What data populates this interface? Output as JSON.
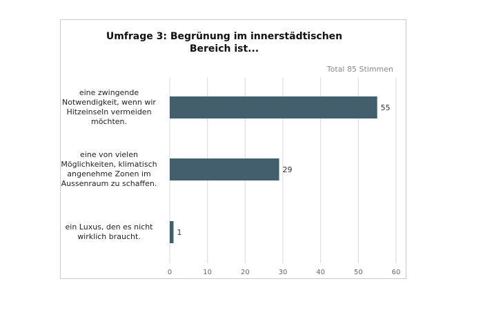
{
  "chart_data": {
    "type": "bar",
    "orientation": "horizontal",
    "title_line1": "Umfrage 3: Begrünung im innerstädtischen",
    "title_line2": "Bereich ist...",
    "total_label": "Total 85 Stimmen",
    "categories": [
      "eine zwingende Notwendigkeit, wenn wir Hitzeinseln vermeiden möchten.",
      "eine von vielen Möglichkeiten, klimatisch angenehme Zonen im Aussenraum zu schaffen.",
      "ein Luxus, den es nicht wirklich braucht."
    ],
    "category_lines": [
      [
        "eine zwingende",
        "Notwendigkeit, wenn wir",
        "Hitzeinseln vermeiden",
        "möchten."
      ],
      [
        "eine von vielen",
        "Möglichkeiten, klimatisch",
        "angenehme Zonen im",
        "Aussenraum zu schaffen."
      ],
      [
        "ein Luxus, den es nicht",
        "wirklich braucht."
      ]
    ],
    "values": [
      55,
      29,
      1
    ],
    "xlim": [
      0,
      60
    ],
    "xticks": [
      0,
      10,
      20,
      30,
      40,
      50,
      60
    ],
    "grid": true,
    "bar_color": "#435e6c",
    "grid_color": "#d9d9d9"
  }
}
